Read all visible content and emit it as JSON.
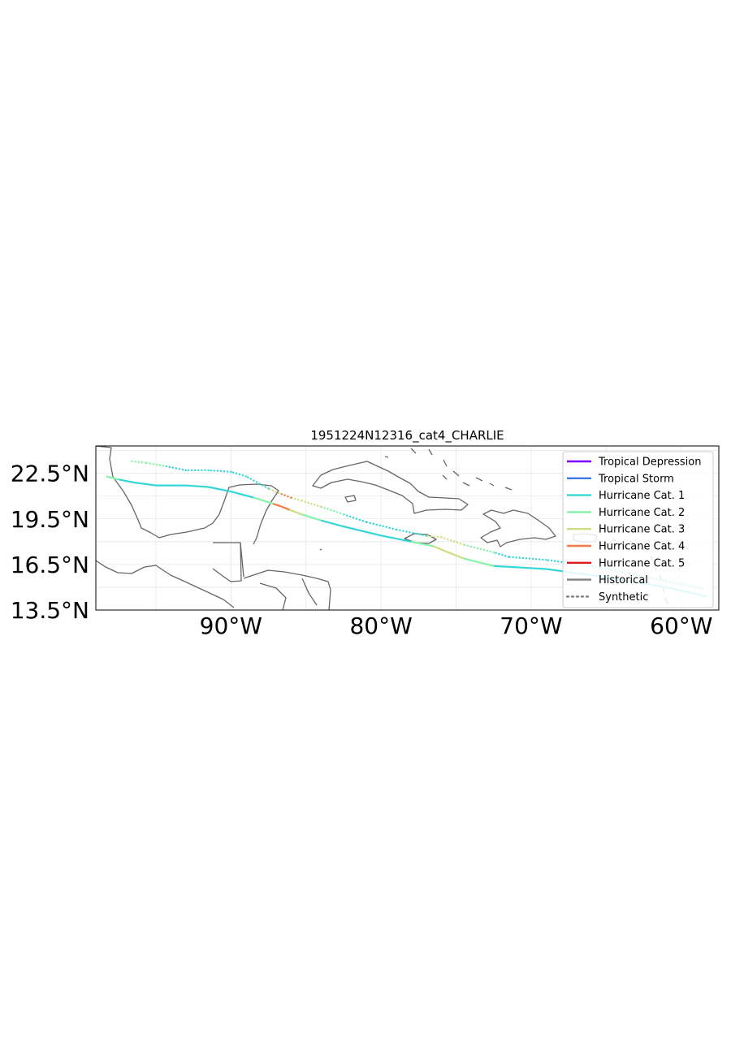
{
  "chart_data": {
    "type": "map",
    "title": "1951224N12316_cat4_CHARLIE",
    "projection": "PlateCarree",
    "extent": {
      "lon": [
        -99,
        -57.5
      ],
      "lat": [
        13.5,
        24.3
      ]
    },
    "x_ticks": [
      {
        "value": -90,
        "label": "90°W"
      },
      {
        "value": -80,
        "label": "80°W"
      },
      {
        "value": -70,
        "label": "70°W"
      },
      {
        "value": -60,
        "label": "60°W"
      }
    ],
    "y_ticks": [
      {
        "value": 22.5,
        "label": "22.5°N"
      },
      {
        "value": 19.5,
        "label": "19.5°N"
      },
      {
        "value": 16.5,
        "label": "16.5°N"
      },
      {
        "value": 13.5,
        "label": "13.5°N"
      }
    ],
    "grid": true,
    "legend_position": "top-right",
    "legend": [
      {
        "label": "Tropical Depression",
        "color": "#7f00ff",
        "style": "solid"
      },
      {
        "label": "Tropical Storm",
        "color": "#3a7ae6",
        "style": "solid"
      },
      {
        "label": "Hurricane Cat. 1",
        "color": "#36d6d6",
        "style": "solid"
      },
      {
        "label": "Hurricane Cat. 2",
        "color": "#86f4a8",
        "style": "solid"
      },
      {
        "label": "Hurricane Cat. 3",
        "color": "#cede82",
        "style": "solid"
      },
      {
        "label": "Hurricane Cat. 4",
        "color": "#f57c48",
        "style": "solid"
      },
      {
        "label": "Hurricane Cat. 5",
        "color": "#e31a1c",
        "style": "solid"
      },
      {
        "label": "Historical",
        "color": "#808080",
        "style": "solid"
      },
      {
        "label": "Synthetic",
        "color": "#808080",
        "style": "dotted"
      }
    ],
    "tracks": [
      {
        "kind": "historical",
        "points": [
          [
            -58.3,
            14.4,
            1
          ],
          [
            -61,
            15.0,
            1
          ],
          [
            -63.5,
            15.4,
            1
          ],
          [
            -66,
            15.8,
            1
          ],
          [
            -69,
            16.2,
            1
          ],
          [
            -72.5,
            16.4,
            2
          ],
          [
            -74.5,
            16.9,
            3
          ],
          [
            -75.8,
            17.4,
            3
          ],
          [
            -76.5,
            17.7,
            2
          ],
          [
            -78,
            18.0,
            1
          ],
          [
            -80,
            18.4,
            1
          ],
          [
            -82.5,
            19.0,
            1
          ],
          [
            -84,
            19.4,
            2
          ],
          [
            -85.3,
            19.8,
            3
          ],
          [
            -86.1,
            20.1,
            4
          ],
          [
            -86.6,
            20.3,
            4
          ],
          [
            -87.2,
            20.5,
            2
          ],
          [
            -88.5,
            20.9,
            1
          ],
          [
            -90,
            21.3,
            1
          ],
          [
            -91.5,
            21.6,
            1
          ],
          [
            -93,
            21.7,
            1
          ],
          [
            -95,
            21.7,
            1
          ],
          [
            -96.5,
            21.9,
            1
          ],
          [
            -97.5,
            22.1,
            2
          ],
          [
            -98.3,
            22.3,
            3
          ]
        ]
      },
      {
        "kind": "synthetic",
        "points": [
          [
            -58.6,
            14.9,
            1
          ],
          [
            -61,
            15.4,
            1
          ],
          [
            -63.5,
            15.9,
            1
          ],
          [
            -66,
            16.4,
            1
          ],
          [
            -69,
            16.8,
            1
          ],
          [
            -71.5,
            17.0,
            1
          ],
          [
            -72.5,
            17.3,
            2
          ],
          [
            -74.5,
            17.8,
            3
          ],
          [
            -76,
            18.3,
            3
          ],
          [
            -77,
            18.4,
            1
          ],
          [
            -79,
            18.8,
            1
          ],
          [
            -81,
            19.3,
            1
          ],
          [
            -82.5,
            19.8,
            2
          ],
          [
            -84,
            20.3,
            3
          ],
          [
            -85.3,
            20.7,
            3
          ],
          [
            -86,
            20.9,
            4
          ],
          [
            -86.8,
            21.2,
            3
          ],
          [
            -87.5,
            21.5,
            1
          ],
          [
            -89,
            22.3,
            1
          ],
          [
            -90,
            22.6,
            1
          ],
          [
            -91.5,
            22.7,
            1
          ],
          [
            -93,
            22.7,
            1
          ],
          [
            -94.5,
            23.0,
            2
          ],
          [
            -95.7,
            23.2,
            2
          ],
          [
            -96.7,
            23.3,
            3
          ]
        ]
      }
    ]
  }
}
